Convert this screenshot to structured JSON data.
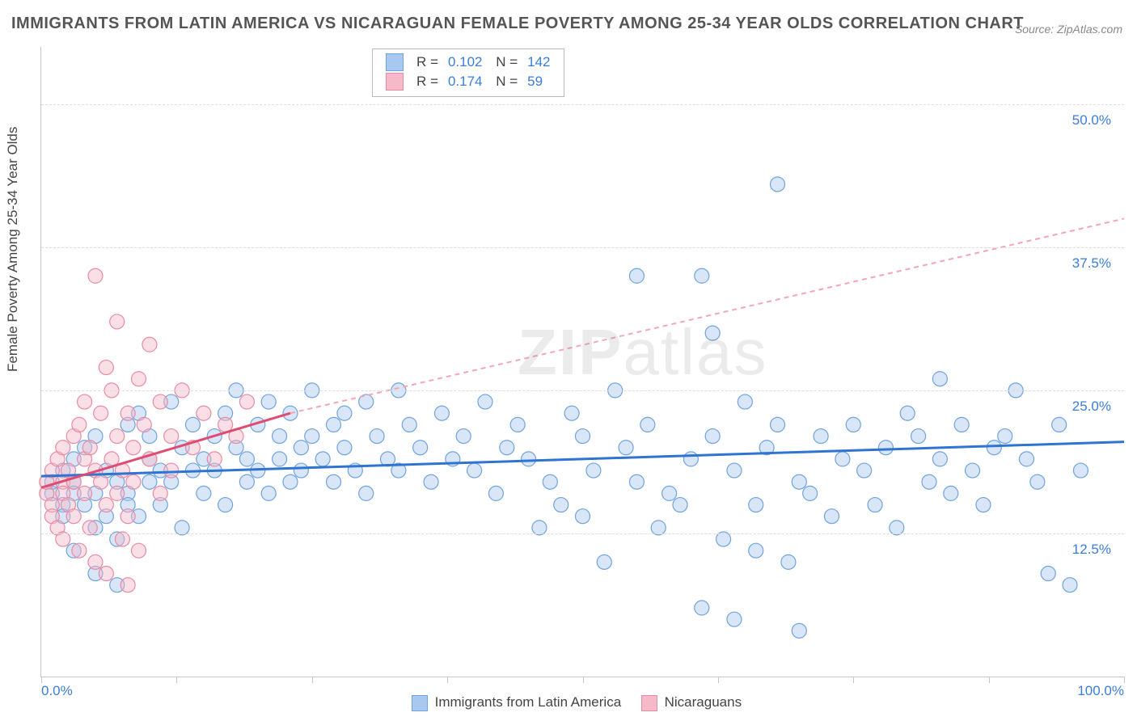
{
  "title": "IMMIGRANTS FROM LATIN AMERICA VS NICARAGUAN FEMALE POVERTY AMONG 25-34 YEAR OLDS CORRELATION CHART",
  "source_label": "Source: ZipAtlas.com",
  "ylabel": "Female Poverty Among 25-34 Year Olds",
  "watermark_a": "ZIP",
  "watermark_b": "atlas",
  "chart": {
    "type": "scatter",
    "xlim": [
      0,
      100
    ],
    "ylim": [
      0,
      55
    ],
    "x_ticks": [
      0,
      12.5,
      25,
      37.5,
      50,
      62.5,
      75,
      87.5,
      100
    ],
    "y_gridlines": [
      12.5,
      25,
      37.5,
      50
    ],
    "y_tick_labels": [
      "12.5%",
      "25.0%",
      "37.5%",
      "50.0%"
    ],
    "x_min_label": "0.0%",
    "x_max_label": "100.0%",
    "background_color": "#ffffff",
    "grid_color": "#dddddd",
    "axis_color": "#c8c8c8",
    "label_color": "#3b7dd8",
    "marker_radius": 9,
    "marker_opacity": 0.45,
    "series": [
      {
        "name": "Immigrants from Latin America",
        "color_fill": "#a9c8ef",
        "color_stroke": "#6fa3de",
        "swatch_fill": "#a9c8ef",
        "swatch_border": "#6fa3de",
        "R": "0.102",
        "N": "142",
        "trend": {
          "x1": 0,
          "y1": 17.5,
          "x2": 100,
          "y2": 20.5,
          "color": "#2f74d0",
          "width": 3,
          "dash": "none"
        },
        "points": [
          [
            1,
            16
          ],
          [
            1,
            17
          ],
          [
            2,
            15
          ],
          [
            2,
            18
          ],
          [
            2,
            14
          ],
          [
            3,
            17
          ],
          [
            3,
            16
          ],
          [
            3,
            19
          ],
          [
            4,
            15
          ],
          [
            4,
            20
          ],
          [
            5,
            16
          ],
          [
            5,
            13
          ],
          [
            5,
            21
          ],
          [
            6,
            14
          ],
          [
            6,
            18
          ],
          [
            7,
            17
          ],
          [
            7,
            12
          ],
          [
            8,
            16
          ],
          [
            8,
            22
          ],
          [
            8,
            15
          ],
          [
            9,
            23
          ],
          [
            9,
            14
          ],
          [
            10,
            17
          ],
          [
            10,
            19
          ],
          [
            10,
            21
          ],
          [
            11,
            18
          ],
          [
            11,
            15
          ],
          [
            12,
            24
          ],
          [
            12,
            17
          ],
          [
            13,
            20
          ],
          [
            13,
            13
          ],
          [
            14,
            18
          ],
          [
            14,
            22
          ],
          [
            15,
            19
          ],
          [
            15,
            16
          ],
          [
            16,
            21
          ],
          [
            16,
            18
          ],
          [
            17,
            23
          ],
          [
            17,
            15
          ],
          [
            18,
            20
          ],
          [
            18,
            25
          ],
          [
            19,
            17
          ],
          [
            19,
            19
          ],
          [
            20,
            22
          ],
          [
            20,
            18
          ],
          [
            21,
            24
          ],
          [
            21,
            16
          ],
          [
            22,
            21
          ],
          [
            22,
            19
          ],
          [
            23,
            17
          ],
          [
            23,
            23
          ],
          [
            24,
            20
          ],
          [
            24,
            18
          ],
          [
            25,
            21
          ],
          [
            25,
            25
          ],
          [
            26,
            19
          ],
          [
            27,
            22
          ],
          [
            27,
            17
          ],
          [
            28,
            23
          ],
          [
            28,
            20
          ],
          [
            29,
            18
          ],
          [
            30,
            24
          ],
          [
            30,
            16
          ],
          [
            31,
            21
          ],
          [
            32,
            19
          ],
          [
            33,
            25
          ],
          [
            33,
            18
          ],
          [
            34,
            22
          ],
          [
            35,
            20
          ],
          [
            36,
            17
          ],
          [
            37,
            23
          ],
          [
            38,
            19
          ],
          [
            39,
            21
          ],
          [
            40,
            18
          ],
          [
            41,
            24
          ],
          [
            42,
            16
          ],
          [
            43,
            20
          ],
          [
            44,
            22
          ],
          [
            45,
            19
          ],
          [
            46,
            13
          ],
          [
            47,
            17
          ],
          [
            48,
            15
          ],
          [
            49,
            23
          ],
          [
            50,
            21
          ],
          [
            50,
            14
          ],
          [
            51,
            18
          ],
          [
            52,
            10
          ],
          [
            53,
            25
          ],
          [
            54,
            20
          ],
          [
            55,
            17
          ],
          [
            55,
            35
          ],
          [
            56,
            22
          ],
          [
            57,
            13
          ],
          [
            58,
            16
          ],
          [
            59,
            15
          ],
          [
            60,
            19
          ],
          [
            61,
            35
          ],
          [
            62,
            21
          ],
          [
            62,
            30
          ],
          [
            63,
            12
          ],
          [
            64,
            18
          ],
          [
            65,
            24
          ],
          [
            66,
            15
          ],
          [
            66,
            11
          ],
          [
            67,
            20
          ],
          [
            68,
            22
          ],
          [
            68,
            43
          ],
          [
            69,
            10
          ],
          [
            70,
            17
          ],
          [
            71,
            16
          ],
          [
            72,
            21
          ],
          [
            73,
            14
          ],
          [
            74,
            19
          ],
          [
            75,
            22
          ],
          [
            76,
            18
          ],
          [
            77,
            15
          ],
          [
            78,
            20
          ],
          [
            79,
            13
          ],
          [
            80,
            23
          ],
          [
            81,
            21
          ],
          [
            82,
            17
          ],
          [
            83,
            19
          ],
          [
            83,
            26
          ],
          [
            84,
            16
          ],
          [
            85,
            22
          ],
          [
            86,
            18
          ],
          [
            87,
            15
          ],
          [
            88,
            20
          ],
          [
            89,
            21
          ],
          [
            90,
            25
          ],
          [
            91,
            19
          ],
          [
            92,
            17
          ],
          [
            93,
            9
          ],
          [
            94,
            22
          ],
          [
            95,
            8
          ],
          [
            96,
            18
          ],
          [
            3,
            11
          ],
          [
            5,
            9
          ],
          [
            7,
            8
          ],
          [
            61,
            6
          ],
          [
            64,
            5
          ],
          [
            70,
            4
          ]
        ]
      },
      {
        "name": "Nicaraguans",
        "color_fill": "#f5b9c7",
        "color_stroke": "#ea8aa2",
        "swatch_fill": "#f5b9c7",
        "swatch_border": "#ea8aa2",
        "R": "0.174",
        "N": "59",
        "trend_solid": {
          "x1": 0,
          "y1": 16.5,
          "x2": 23,
          "y2": 23.0,
          "color": "#e04b72",
          "width": 3
        },
        "trend_dash": {
          "x1": 23,
          "y1": 23.0,
          "x2": 100,
          "y2": 40.0,
          "color": "#f2a7b8",
          "width": 2,
          "dash": "6 5"
        },
        "points": [
          [
            0.5,
            16
          ],
          [
            0.5,
            17
          ],
          [
            1,
            15
          ],
          [
            1,
            18
          ],
          [
            1,
            14
          ],
          [
            1.5,
            19
          ],
          [
            1.5,
            13
          ],
          [
            2,
            17
          ],
          [
            2,
            16
          ],
          [
            2,
            20
          ],
          [
            2,
            12
          ],
          [
            2.5,
            18
          ],
          [
            2.5,
            15
          ],
          [
            3,
            21
          ],
          [
            3,
            14
          ],
          [
            3,
            17
          ],
          [
            3.5,
            22
          ],
          [
            3.5,
            11
          ],
          [
            4,
            19
          ],
          [
            4,
            16
          ],
          [
            4,
            24
          ],
          [
            4.5,
            13
          ],
          [
            4.5,
            20
          ],
          [
            5,
            18
          ],
          [
            5,
            10
          ],
          [
            5,
            35
          ],
          [
            5.5,
            17
          ],
          [
            5.5,
            23
          ],
          [
            6,
            15
          ],
          [
            6,
            27
          ],
          [
            6,
            9
          ],
          [
            6.5,
            19
          ],
          [
            6.5,
            25
          ],
          [
            7,
            16
          ],
          [
            7,
            21
          ],
          [
            7,
            31
          ],
          [
            7.5,
            12
          ],
          [
            7.5,
            18
          ],
          [
            8,
            23
          ],
          [
            8,
            14
          ],
          [
            8,
            8
          ],
          [
            8.5,
            20
          ],
          [
            8.5,
            17
          ],
          [
            9,
            26
          ],
          [
            9,
            11
          ],
          [
            9.5,
            22
          ],
          [
            10,
            19
          ],
          [
            10,
            29
          ],
          [
            11,
            16
          ],
          [
            11,
            24
          ],
          [
            12,
            21
          ],
          [
            12,
            18
          ],
          [
            13,
            25
          ],
          [
            14,
            20
          ],
          [
            15,
            23
          ],
          [
            16,
            19
          ],
          [
            17,
            22
          ],
          [
            18,
            21
          ],
          [
            19,
            24
          ]
        ]
      }
    ]
  },
  "legend_bottom": {
    "items": [
      {
        "label": "Immigrants from Latin America",
        "fill": "#a9c8ef",
        "border": "#6fa3de"
      },
      {
        "label": "Nicaraguans",
        "fill": "#f5b9c7",
        "border": "#ea8aa2"
      }
    ]
  }
}
